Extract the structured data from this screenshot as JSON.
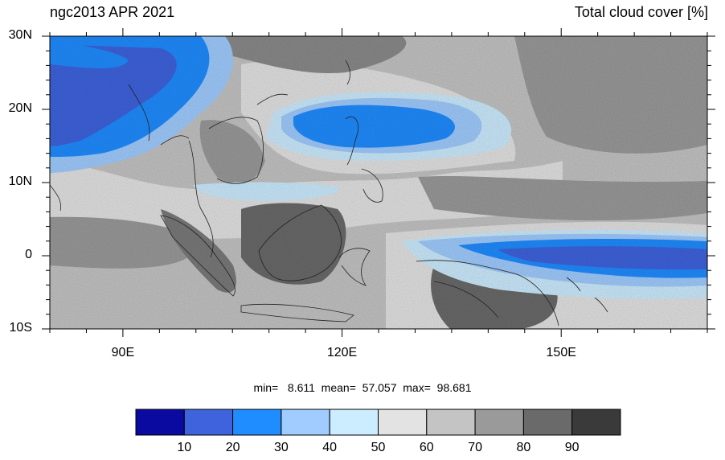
{
  "title_left": "ngc2013 APR 2021",
  "title_right": "Total cloud cover [%]",
  "lat_labels": [
    "30N",
    "20N",
    "10N",
    "0",
    "10S"
  ],
  "lon_labels": [
    "90E",
    "120E",
    "150E"
  ],
  "stats": "min=   8.611  mean=  57.057  max=  98.681",
  "colorbar": {
    "labels": [
      "10",
      "20",
      "30",
      "40",
      "50",
      "60",
      "70",
      "80",
      "90"
    ],
    "colors": [
      "#0a0aa0",
      "#3e63dd",
      "#1f8cff",
      "#a0ccff",
      "#ccecff",
      "#e3e3e3",
      "#c4c4c4",
      "#9a9a9a",
      "#6a6a6a",
      "#3a3a3a"
    ]
  },
  "map": {
    "lon_range": [
      80,
      170
    ],
    "lat_range": [
      -10,
      30
    ]
  }
}
